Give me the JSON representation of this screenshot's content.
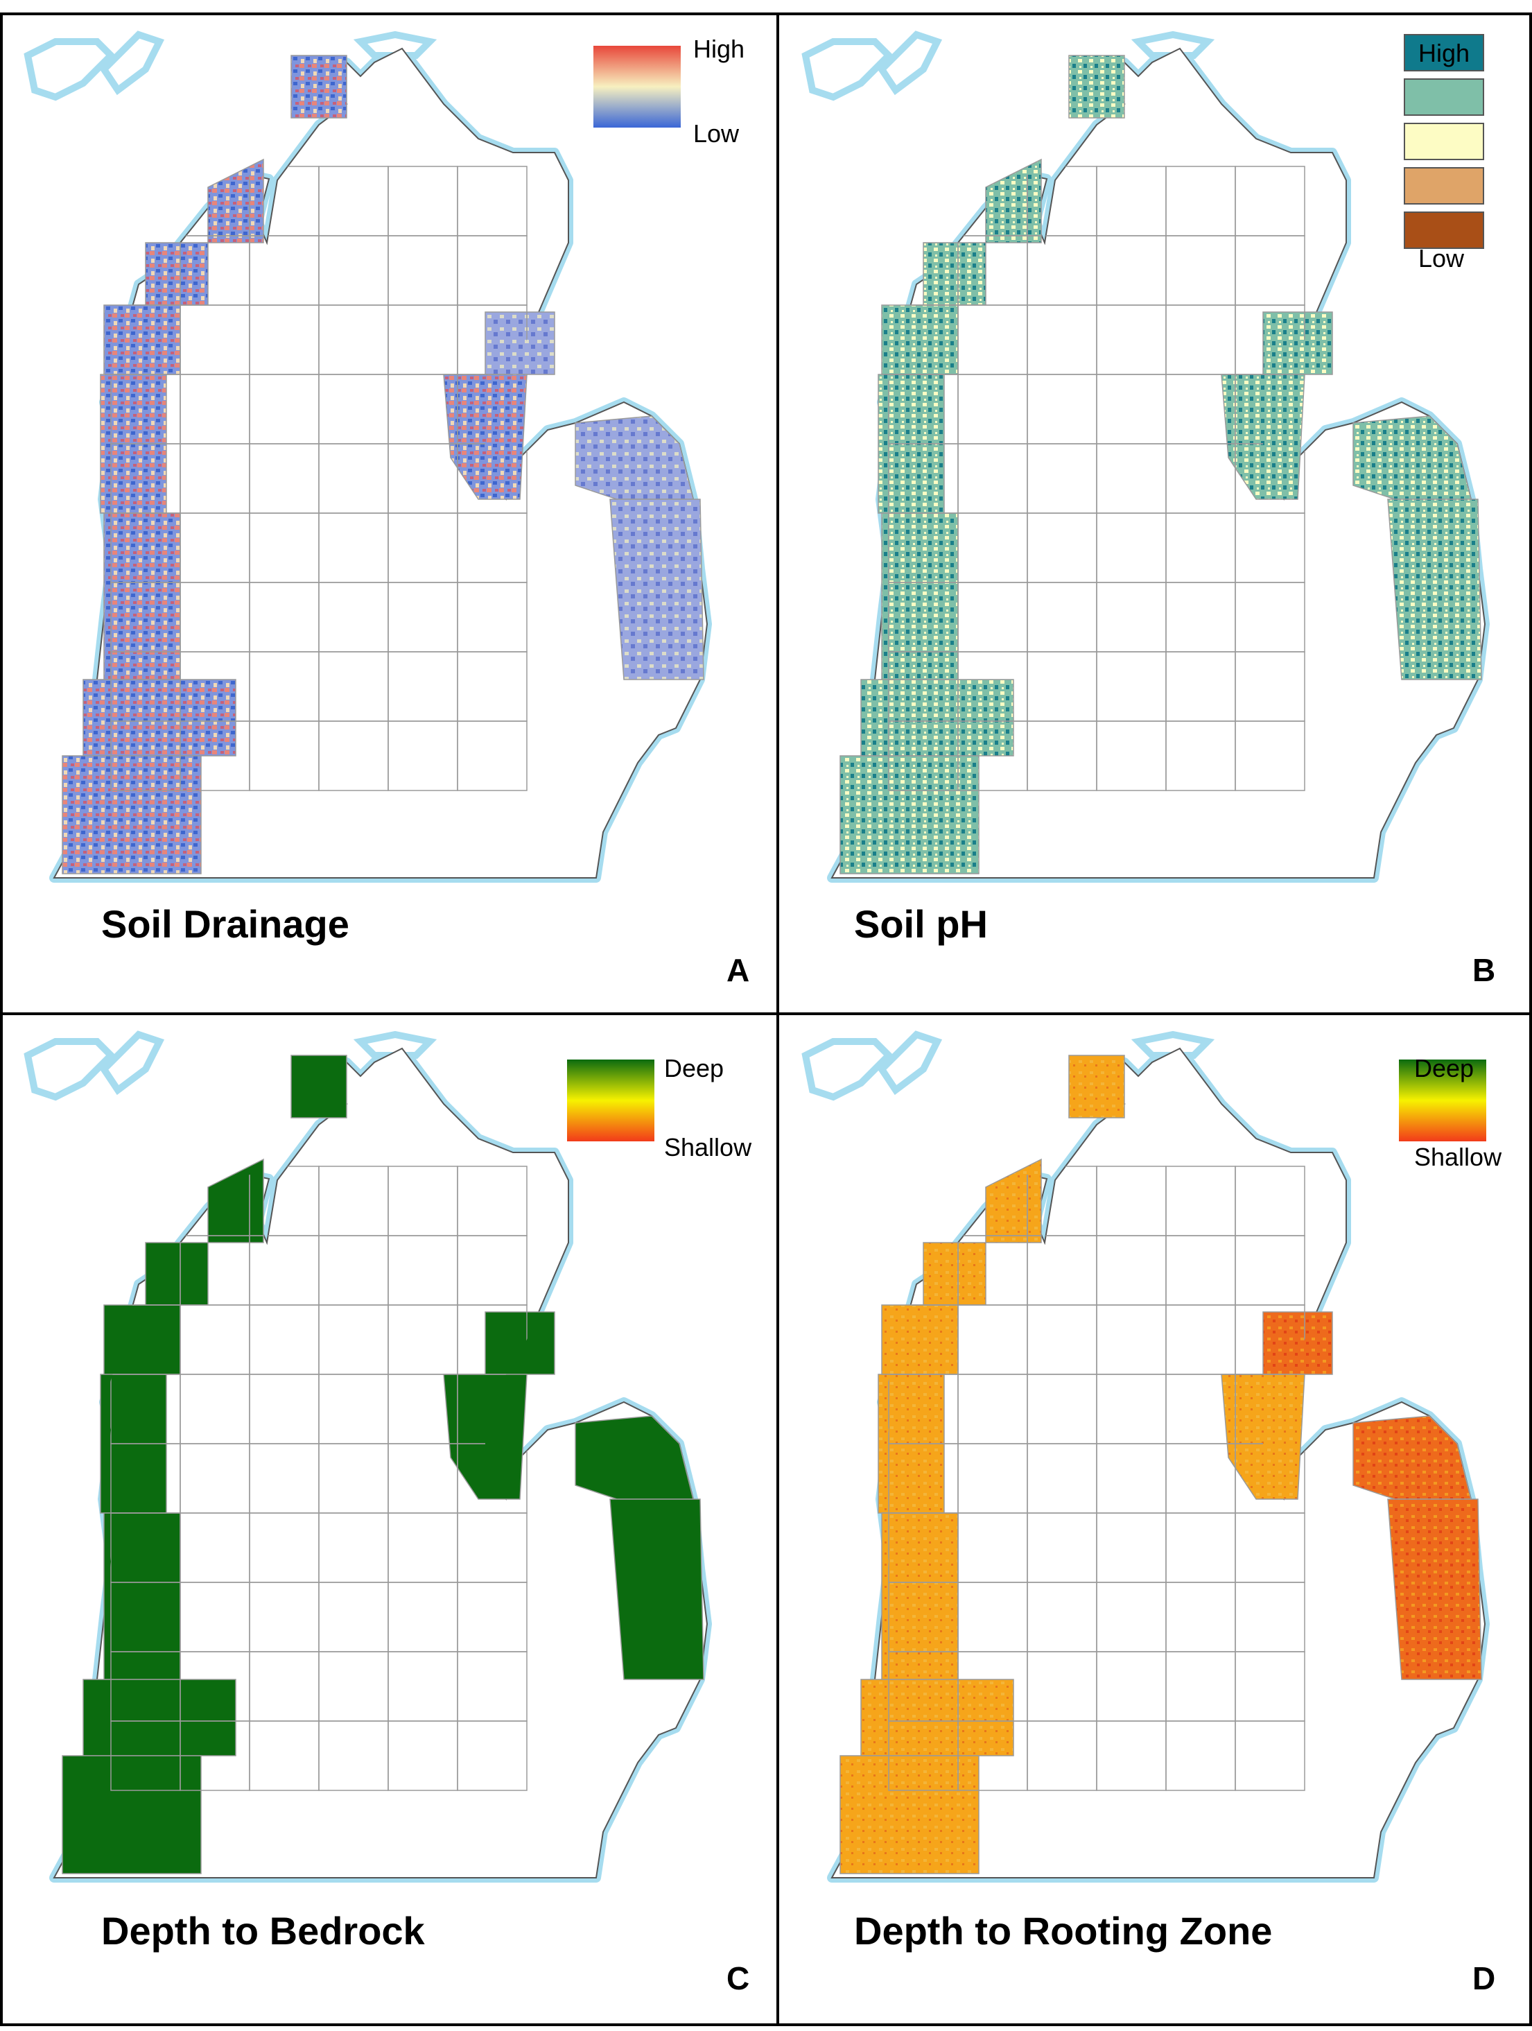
{
  "panels": [
    {
      "letter": "A",
      "title": "Soil Drainage",
      "legend": {
        "type": "gradient",
        "high_label": "High",
        "low_label": "Low",
        "colors": [
          "#e8473a",
          "#f7f0c0",
          "#3a66d6"
        ]
      },
      "fill_style": "drainage"
    },
    {
      "letter": "B",
      "title": "Soil pH",
      "legend": {
        "type": "classes",
        "high_label": "High",
        "low_label": "Low",
        "colors": [
          "#0f7a8c",
          "#7fbfa8",
          "#fdfcc4",
          "#dfa468",
          "#a94f17"
        ]
      },
      "fill_style": "ph"
    },
    {
      "letter": "C",
      "title": "Depth to Bedrock",
      "legend": {
        "type": "gradient",
        "high_label": "Deep",
        "low_label": "Shallow",
        "colors": [
          "#0b6b0f",
          "#f7f200",
          "#f23a1a"
        ]
      },
      "fill_style": "bedrock"
    },
    {
      "letter": "D",
      "title": "Depth to Rooting Zone",
      "legend": {
        "type": "gradient",
        "high_label": "Deep",
        "low_label": "Shallow",
        "colors": [
          "#0b6b0f",
          "#f7f200",
          "#f23a1a"
        ]
      },
      "fill_style": "rooting"
    }
  ],
  "colors": {
    "water_halo": "#a6dcef",
    "county_line": "#9a9a9a",
    "land": "#ffffff",
    "frame": "#000000"
  }
}
